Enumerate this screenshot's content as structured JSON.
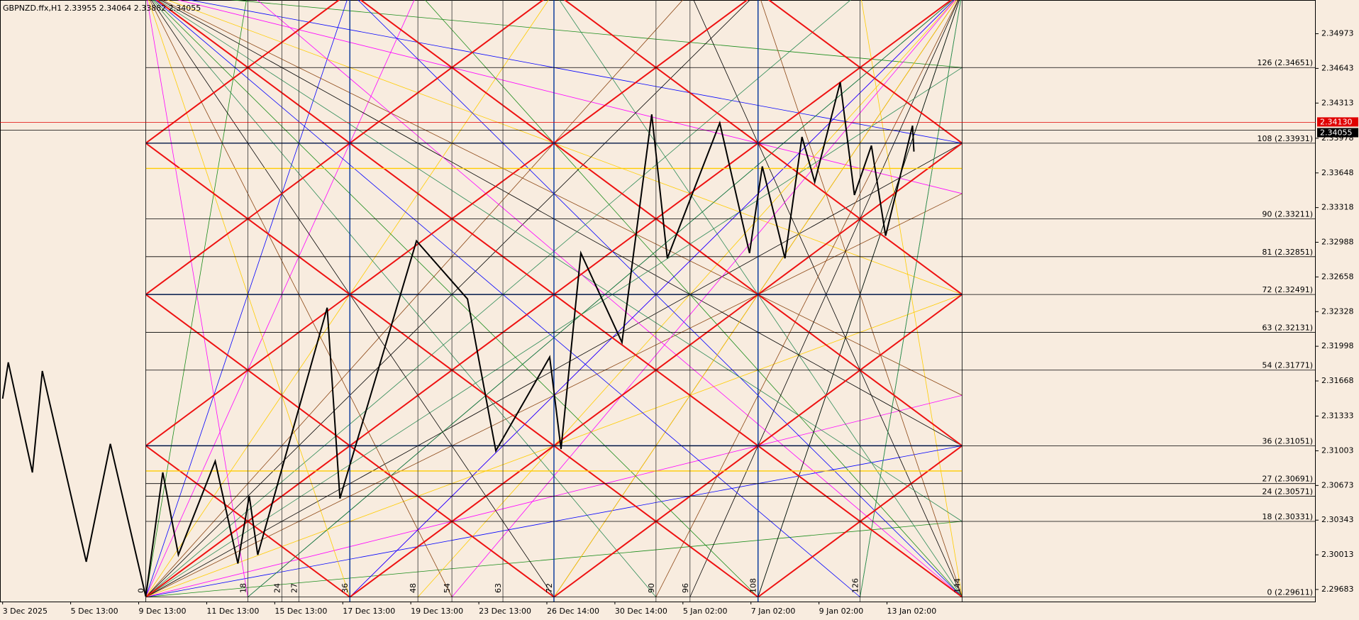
{
  "header": "GBPNZD.ffx,H1  2.33955 2.34064 2.33882 2.34055",
  "chart_data": {
    "type": "line",
    "ylim": [
      2.29568,
      2.35294
    ],
    "yticks": [
      2.34973,
      2.34643,
      2.34313,
      2.33978,
      2.33648,
      2.33318,
      2.32988,
      2.32658,
      2.32328,
      2.31998,
      2.31668,
      2.31333,
      2.31003,
      2.30673,
      2.30343,
      2.30013,
      2.29683
    ],
    "xlim": [
      0,
      925
    ],
    "xticks": [
      {
        "value": 0,
        "label": "3 Dec 2025"
      },
      {
        "value": 48,
        "label": "5 Dec 13:00"
      },
      {
        "value": 96,
        "label": "9 Dec 13:00"
      },
      {
        "value": 144,
        "label": "11 Dec 13:00"
      },
      {
        "value": 192,
        "label": "15 Dec 13:00"
      },
      {
        "value": 240,
        "label": "17 Dec 13:00"
      },
      {
        "value": 288,
        "label": "19 Dec 13:00"
      },
      {
        "value": 336,
        "label": "23 Dec 13:00"
      },
      {
        "value": 384,
        "label": "26 Dec 14:00"
      },
      {
        "value": 432,
        "label": "30 Dec 14:00"
      },
      {
        "value": 480,
        "label": "5 Jan 02:00"
      },
      {
        "value": 528,
        "label": "7 Jan 02:00"
      },
      {
        "value": 576,
        "label": "9 Jan 02:00"
      },
      {
        "value": 624,
        "label": "13 Jan 02:00"
      }
    ],
    "series": [
      {
        "color": "#000000",
        "x": [
          0,
          4,
          21,
          28,
          59,
          76,
          101,
          113,
          124,
          150,
          166,
          174,
          180,
          229,
          238,
          292,
          328,
          348,
          386,
          394,
          408,
          437,
          458,
          469,
          506,
          527,
          536,
          552,
          564,
          573,
          591,
          601,
          613,
          623,
          642,
          643
        ],
        "values": [
          2.31499,
          2.31845,
          2.30797,
          2.31763,
          2.29947,
          2.31069,
          2.29617,
          2.30797,
          2.30013,
          2.30904,
          2.2993,
          2.30574,
          2.30013,
          2.32365,
          2.30549,
          2.33001,
          2.32448,
          2.31003,
          2.31895,
          2.3102,
          2.32885,
          2.32035,
          2.34205,
          2.32835,
          2.34123,
          2.32885,
          2.3371,
          2.32835,
          2.33991,
          2.33562,
          2.34511,
          2.33438,
          2.33908,
          2.3305,
          2.34098,
          2.33851
        ]
      }
    ],
    "levels": [
      {
        "value": 2.29611,
        "label": "0 (2.29611)"
      },
      {
        "value": 2.30331,
        "label": "18 (2.30331)"
      },
      {
        "value": 2.30571,
        "label": "24 (2.30571)"
      },
      {
        "value": 2.30691,
        "label": "27 (2.30691)"
      },
      {
        "value": 2.31051,
        "label": "36 (2.31051)"
      },
      {
        "value": 2.31771,
        "label": "54 (2.31771)"
      },
      {
        "value": 2.32131,
        "label": "63 (2.32131)"
      },
      {
        "value": 2.32491,
        "label": "72 (2.32491)"
      },
      {
        "value": 2.32851,
        "label": "81 (2.32851)"
      },
      {
        "value": 2.33211,
        "label": "90 (2.33211)"
      },
      {
        "value": 2.33931,
        "label": "108 (2.33931)"
      },
      {
        "value": 2.34651,
        "label": "126 (2.34651)"
      }
    ],
    "gann_numbers": [
      0,
      18,
      24,
      27,
      36,
      48,
      54,
      63,
      72,
      90,
      96,
      108,
      126,
      144
    ],
    "price_lines": [
      {
        "value": 2.3413,
        "label": "2.34130",
        "color": "#e00000"
      },
      {
        "value": 2.34055,
        "label": "2.34055",
        "color": "#000000"
      }
    ]
  }
}
